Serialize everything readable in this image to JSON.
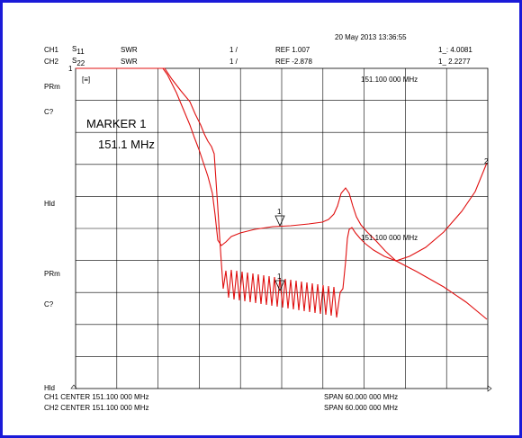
{
  "timestamp": "20 May 2013  13:36:55",
  "channels": [
    {
      "id": "CH1",
      "param_main": "S",
      "param_sub": "11",
      "format": "SWR",
      "scale": "1 /",
      "ref": "REF 1.007",
      "marker_readout": "1_: 4.0081"
    },
    {
      "id": "CH2",
      "param_main": "S",
      "param_sub": "22",
      "format": "SWR",
      "scale": "1 /",
      "ref": "REF -2.878",
      "marker_readout": "1_  2.2277"
    }
  ],
  "side_labels": [
    "PRm",
    "C?",
    "Hld",
    "PRm",
    "C?",
    "Hld"
  ],
  "marker_box": {
    "title": "MARKER 1",
    "value": "151.1 MHz"
  },
  "marker_freq_labels": [
    "151.100 000 MHz",
    "151.100 000 MHz"
  ],
  "marker_tags": [
    "1",
    "2",
    "1",
    "1"
  ],
  "display_icon_text": "[≡]",
  "footer": {
    "ch1_center": "CH1 CENTER  151.100 000 MHz",
    "ch2_center": "CH2 CENTER  151.100 000 MHz",
    "ch1_span": "SPAN  60.000 000 MHz",
    "ch2_span": "SPAN  60.000 000 MHz"
  },
  "trace_color": "#e01010",
  "frame_color": "#1a1ad8",
  "grid": {
    "columns": 10,
    "rows": 10
  }
}
